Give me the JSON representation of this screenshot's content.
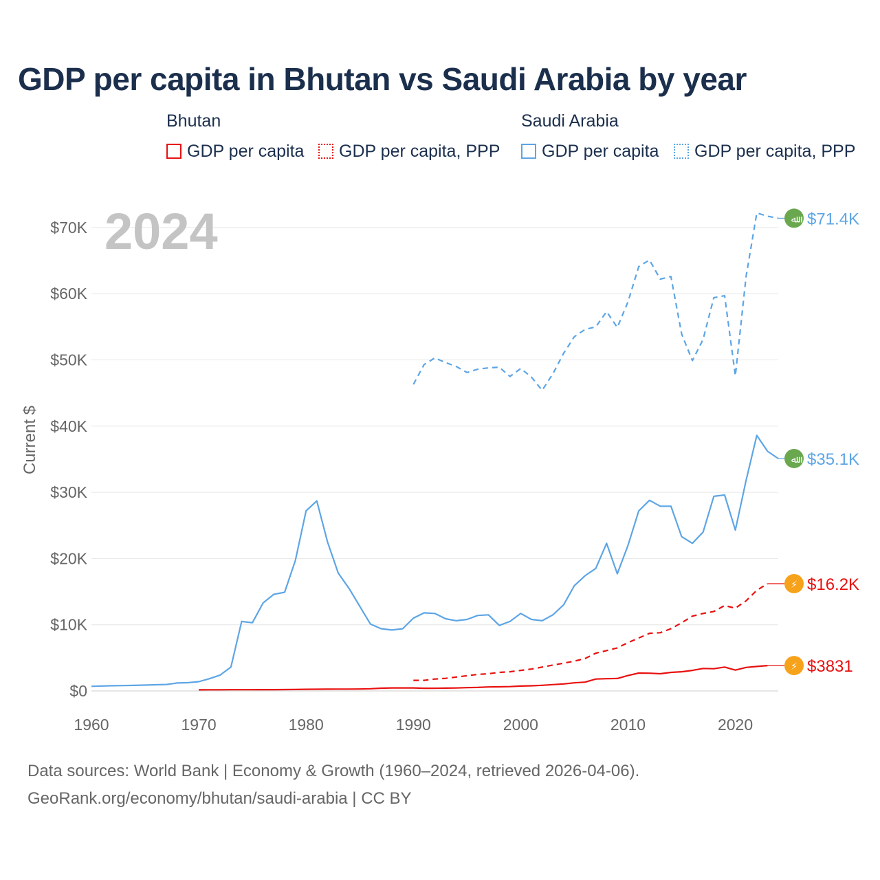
{
  "title": "GDP per capita in Bhutan vs Saudi Arabia by year",
  "legend": {
    "groups": [
      {
        "name": "Bhutan",
        "color": "#e8100f",
        "items": [
          {
            "label": "GDP per capita",
            "style": "solid"
          },
          {
            "label": "GDP per capita, PPP",
            "style": "dotted"
          }
        ]
      },
      {
        "name": "Saudi Arabia",
        "color": "#5da5e5",
        "items": [
          {
            "label": "GDP per capita",
            "style": "solid"
          },
          {
            "label": "GDP per capita, PPP",
            "style": "dotted"
          }
        ]
      }
    ]
  },
  "footer": {
    "line1": "Data sources: World Bank | Economy & Growth (1960–2024, retrieved 2026-04-06).",
    "line2": "GeoRank.org/economy/bhutan/saudi-arabia | CC BY"
  },
  "chart_data": {
    "type": "line",
    "title": "GDP per capita in Bhutan vs Saudi Arabia by year",
    "year_watermark": "2024",
    "ylabel": "Current $",
    "xlabel": "",
    "xlim": [
      1960,
      2024
    ],
    "ylim": [
      0,
      72000
    ],
    "x_ticks": [
      1960,
      1970,
      1980,
      1990,
      2000,
      2010,
      2020
    ],
    "x_tick_labels": [
      "1960",
      "1970",
      "1980",
      "1990",
      "2000",
      "2010",
      "2020"
    ],
    "y_ticks": [
      0,
      10000,
      20000,
      30000,
      40000,
      50000,
      60000,
      70000
    ],
    "y_tick_labels": [
      "$0",
      "$10K",
      "$20K",
      "$30K",
      "$40K",
      "$50K",
      "$60K",
      "$70K"
    ],
    "grid": true,
    "series": [
      {
        "name": "Saudi Arabia GDP per capita, PPP",
        "country": "Saudi Arabia",
        "color": "#5da5e5",
        "dash": "dashed",
        "end_label": "$71.4K",
        "end_value": 71400,
        "x": [
          1990,
          1991,
          1992,
          1993,
          1994,
          1995,
          1996,
          1997,
          1998,
          1999,
          2000,
          2001,
          2002,
          2003,
          2004,
          2005,
          2006,
          2007,
          2008,
          2009,
          2010,
          2011,
          2012,
          2013,
          2014,
          2015,
          2016,
          2017,
          2018,
          2019,
          2020,
          2021,
          2022,
          2023,
          2024
        ],
        "values": [
          46300,
          49300,
          50300,
          49600,
          49000,
          48100,
          48600,
          48800,
          48900,
          47500,
          48700,
          47400,
          45400,
          47900,
          51000,
          53500,
          54600,
          55000,
          57300,
          54900,
          58800,
          64100,
          65100,
          62200,
          62600,
          53900,
          49900,
          53100,
          59400,
          59700,
          47600,
          62600,
          72200,
          71700,
          71400
        ]
      },
      {
        "name": "Saudi Arabia GDP per capita",
        "country": "Saudi Arabia",
        "color": "#5da5e5",
        "dash": "solid",
        "end_label": "$35.1K",
        "end_value": 35100,
        "x": [
          1960,
          1961,
          1962,
          1963,
          1964,
          1965,
          1966,
          1967,
          1968,
          1969,
          1970,
          1971,
          1972,
          1973,
          1974,
          1975,
          1976,
          1977,
          1978,
          1979,
          1980,
          1981,
          1982,
          1983,
          1984,
          1985,
          1986,
          1987,
          1988,
          1989,
          1990,
          1991,
          1992,
          1993,
          1994,
          1995,
          1996,
          1997,
          1998,
          1999,
          2000,
          2001,
          2002,
          2003,
          2004,
          2005,
          2006,
          2007,
          2008,
          2009,
          2010,
          2011,
          2012,
          2013,
          2014,
          2015,
          2016,
          2017,
          2018,
          2019,
          2020,
          2021,
          2022,
          2023,
          2024
        ],
        "values": [
          700,
          750,
          790,
          810,
          840,
          880,
          930,
          980,
          1200,
          1250,
          1400,
          1850,
          2400,
          3600,
          10500,
          10300,
          13300,
          14600,
          14900,
          19700,
          27200,
          28700,
          22500,
          17800,
          15500,
          12800,
          10100,
          9400,
          9200,
          9400,
          11000,
          11800,
          11700,
          10900,
          10600,
          10800,
          11400,
          11500,
          9900,
          10500,
          11700,
          10800,
          10600,
          11500,
          13000,
          15900,
          17400,
          18500,
          22300,
          17700,
          22000,
          27200,
          28800,
          27900,
          27900,
          23300,
          22300,
          24000,
          29400,
          29600,
          24300,
          31800,
          38600,
          36200,
          35100
        ]
      },
      {
        "name": "Bhutan GDP per capita, PPP",
        "country": "Bhutan",
        "color": "#e8100f",
        "dash": "dashed",
        "end_label": "$16.2K",
        "end_value": 16200,
        "x": [
          1990,
          1991,
          1992,
          1993,
          1994,
          1995,
          1996,
          1997,
          1998,
          1999,
          2000,
          2001,
          2002,
          2003,
          2004,
          2005,
          2006,
          2007,
          2008,
          2009,
          2010,
          2011,
          2012,
          2013,
          2014,
          2015,
          2016,
          2017,
          2018,
          2019,
          2020,
          2021,
          2022,
          2023
        ],
        "values": [
          1600,
          1600,
          1800,
          1900,
          2100,
          2300,
          2500,
          2600,
          2800,
          2900,
          3100,
          3300,
          3600,
          3900,
          4200,
          4500,
          4900,
          5700,
          6100,
          6500,
          7300,
          8000,
          8700,
          8800,
          9400,
          10300,
          11300,
          11700,
          12000,
          12900,
          12500,
          13600,
          15200,
          16200
        ]
      },
      {
        "name": "Bhutan GDP per capita",
        "country": "Bhutan",
        "color": "#e8100f",
        "dash": "solid",
        "end_label": "$3831",
        "end_value": 3831,
        "x": [
          1970,
          1971,
          1972,
          1973,
          1974,
          1975,
          1976,
          1977,
          1978,
          1979,
          1980,
          1981,
          1982,
          1983,
          1984,
          1985,
          1986,
          1987,
          1988,
          1989,
          1990,
          1991,
          1992,
          1993,
          1994,
          1995,
          1996,
          1997,
          1998,
          1999,
          2000,
          2001,
          2002,
          2003,
          2004,
          2005,
          2006,
          2007,
          2008,
          2009,
          2010,
          2011,
          2012,
          2013,
          2014,
          2015,
          2016,
          2017,
          2018,
          2019,
          2020,
          2021,
          2022,
          2023
        ],
        "values": [
          170,
          175,
          180,
          185,
          190,
          190,
          195,
          200,
          210,
          220,
          250,
          260,
          270,
          280,
          280,
          290,
          330,
          420,
          460,
          460,
          460,
          400,
          410,
          430,
          450,
          500,
          530,
          600,
          620,
          650,
          740,
          780,
          850,
          960,
          1060,
          1230,
          1330,
          1800,
          1850,
          1880,
          2330,
          2700,
          2680,
          2600,
          2800,
          2900,
          3100,
          3400,
          3350,
          3600,
          3150,
          3550,
          3700,
          3831
        ]
      }
    ]
  }
}
